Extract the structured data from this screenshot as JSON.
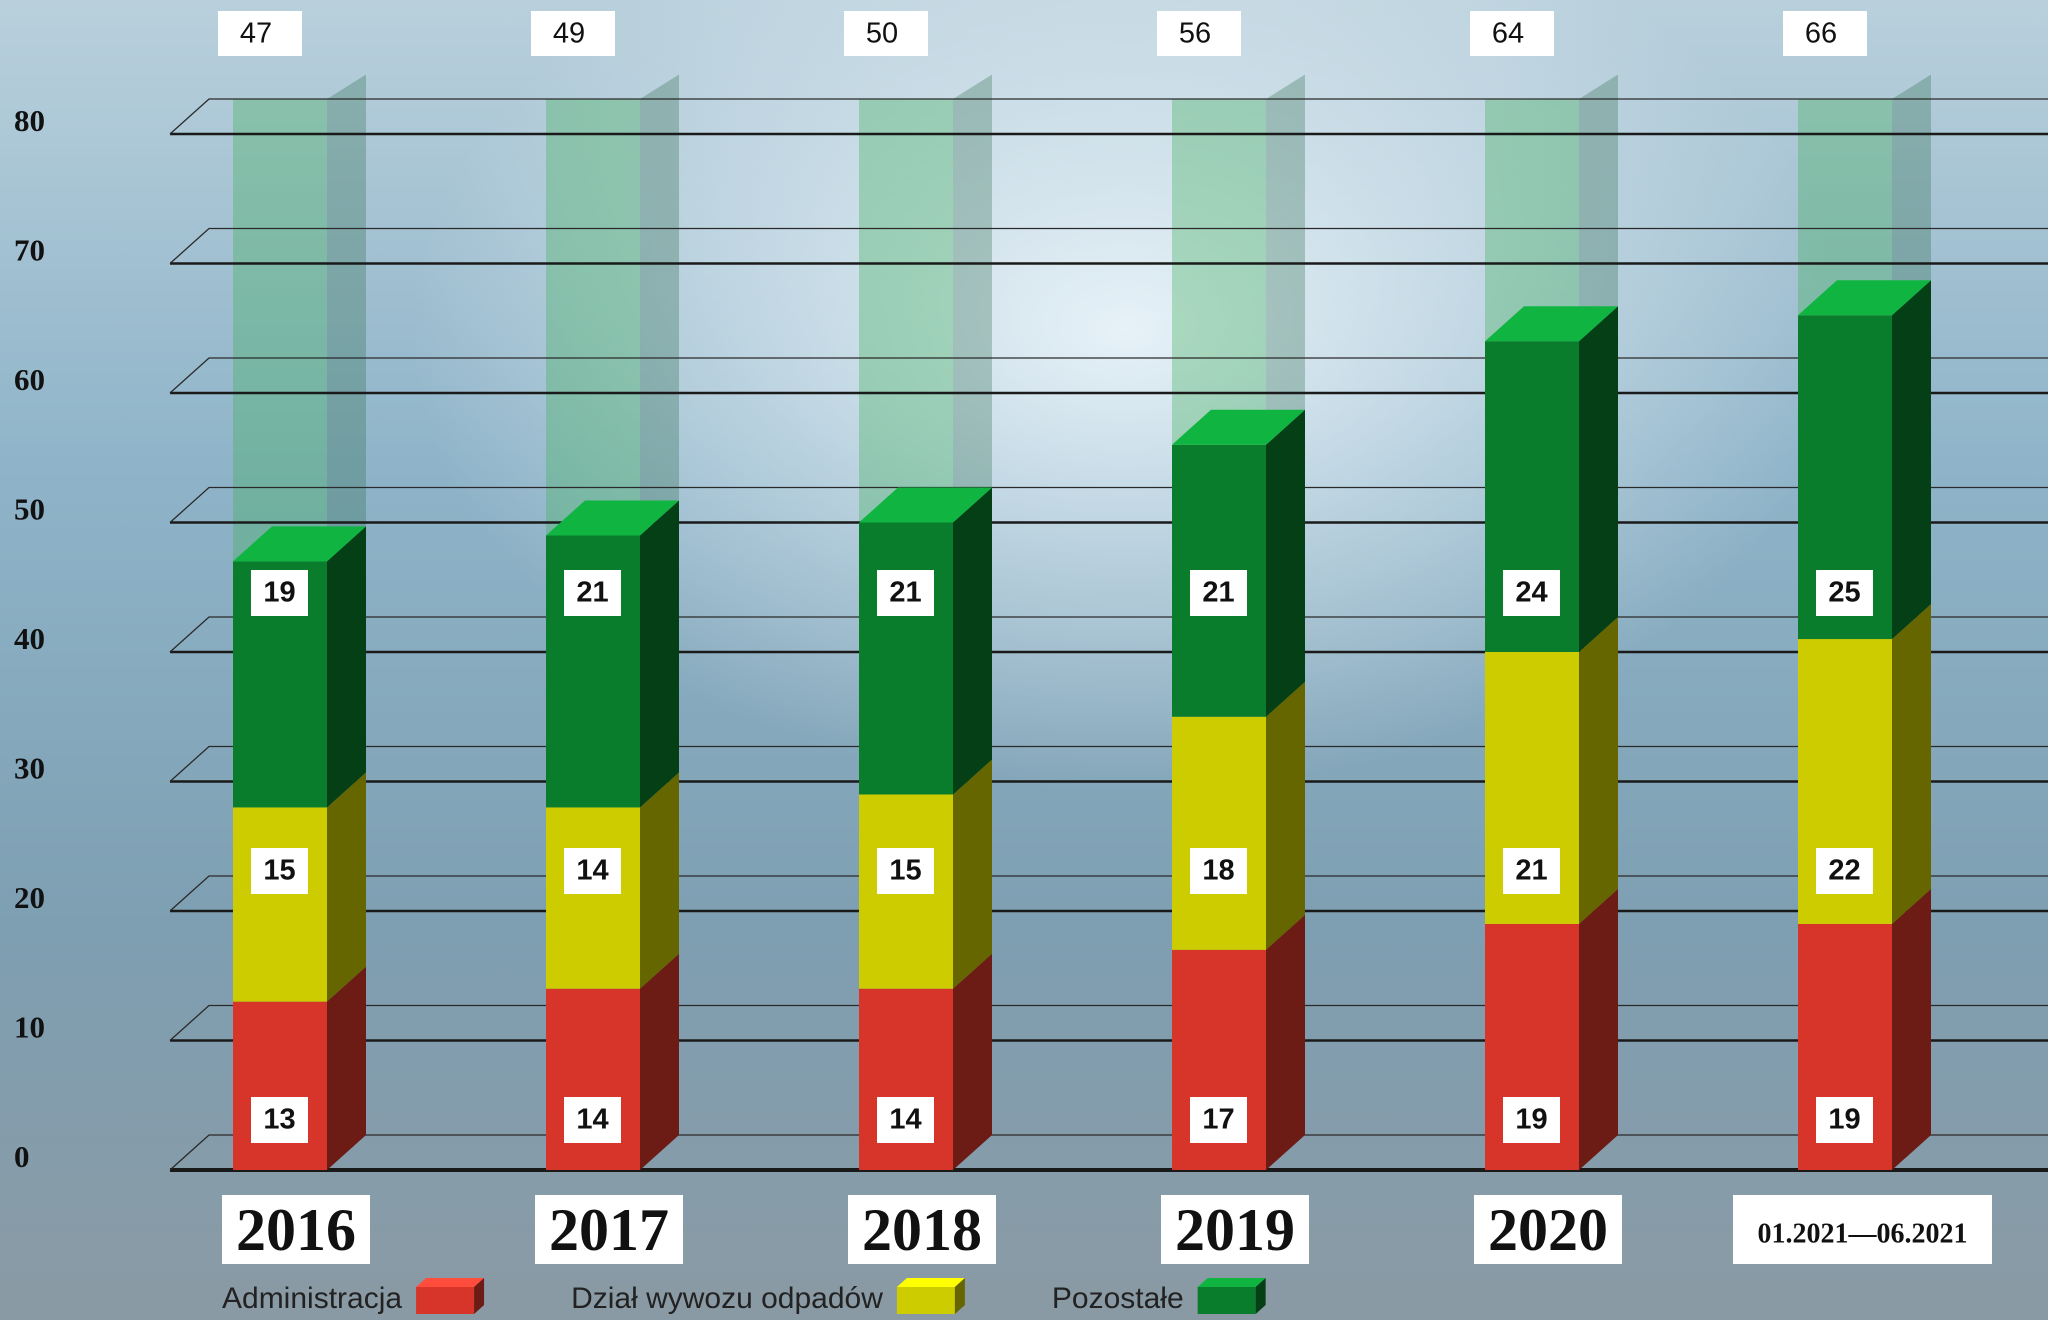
{
  "chart_data": {
    "type": "bar",
    "stacked": true,
    "categories": [
      "2016",
      "2017",
      "2018",
      "2019",
      "2020",
      "01.2021—06.2021"
    ],
    "series": [
      {
        "name": "Administracja",
        "color": "#d8352a",
        "values": [
          13,
          14,
          14,
          17,
          19,
          19
        ]
      },
      {
        "name": "Dział wywozu odpadów",
        "color": "#cccc00",
        "values": [
          15,
          14,
          15,
          18,
          21,
          22
        ]
      },
      {
        "name": "Pozostałe",
        "color": "#0a7d2c",
        "values": [
          19,
          21,
          21,
          21,
          24,
          25
        ]
      }
    ],
    "totals": [
      47,
      49,
      50,
      56,
      64,
      66
    ],
    "ylim": [
      0,
      80
    ],
    "yticks": [
      0,
      10,
      20,
      30,
      40,
      50,
      60,
      70,
      80
    ],
    "grid": true
  }
}
